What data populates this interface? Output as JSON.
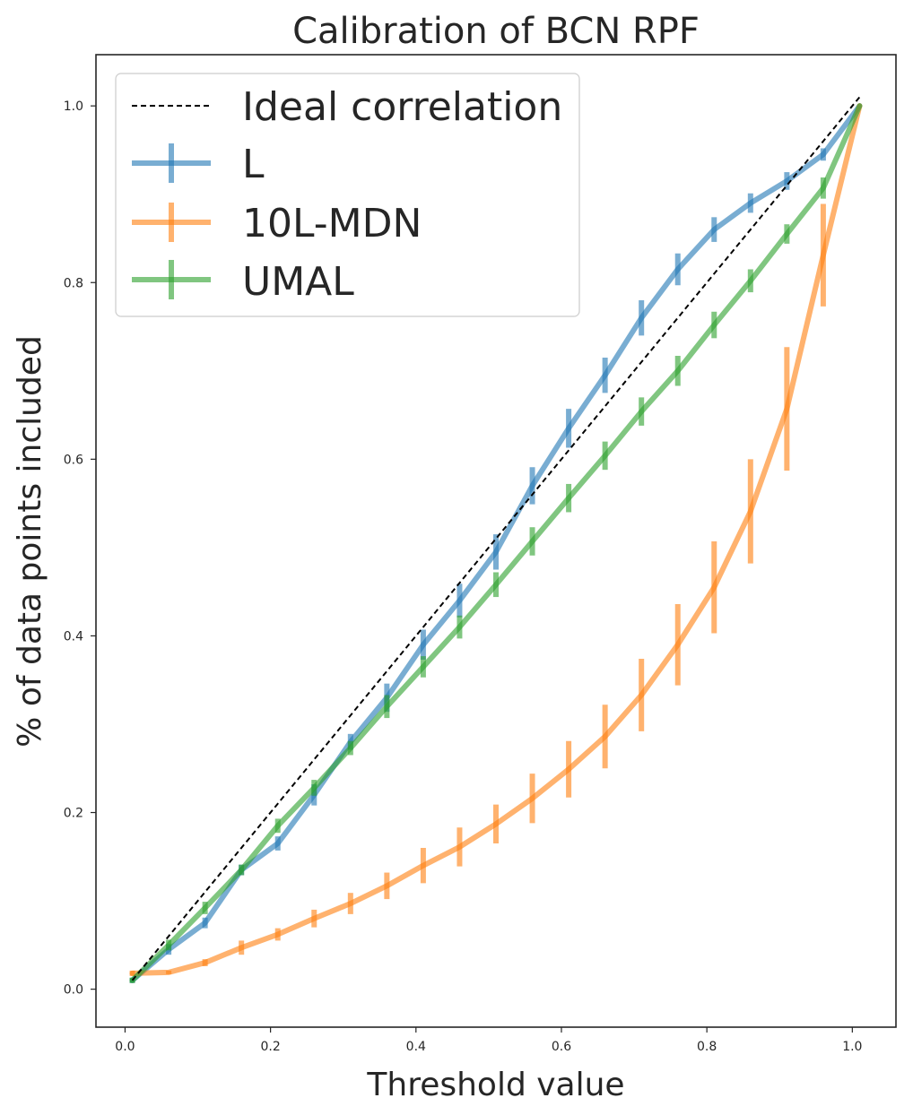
{
  "chart_data": {
    "type": "line",
    "title": "Calibration of BCN RPF",
    "xlabel": "Threshold value",
    "ylabel": "% of data points included",
    "xlim": [
      -0.04,
      1.06
    ],
    "ylim": [
      -0.043,
      1.058
    ],
    "xticks": [
      0.0,
      0.2,
      0.4,
      0.6,
      0.8,
      1.0
    ],
    "xtick_labels": [
      "0.0",
      "0.2",
      "0.4",
      "0.6",
      "0.8",
      "1.0"
    ],
    "yticks": [
      0.0,
      0.2,
      0.4,
      0.6,
      0.8,
      1.0
    ],
    "ytick_labels": [
      "0.0",
      "0.2",
      "0.4",
      "0.6",
      "0.8",
      "1.0"
    ],
    "legend_position": "top-left",
    "x": [
      0.01,
      0.06,
      0.11,
      0.16,
      0.21,
      0.26,
      0.31,
      0.36,
      0.41,
      0.46,
      0.51,
      0.56,
      0.61,
      0.66,
      0.71,
      0.76,
      0.81,
      0.86,
      0.91,
      0.96,
      1.01
    ],
    "ideal": {
      "name": "Ideal correlation",
      "color": "#000000",
      "x": [
        0.01,
        1.01
      ],
      "y": [
        0.01,
        1.01
      ]
    },
    "series": [
      {
        "name": "L",
        "color": "#1f77b4",
        "values": [
          0.01,
          0.045,
          0.075,
          0.135,
          0.165,
          0.22,
          0.28,
          0.33,
          0.39,
          0.44,
          0.495,
          0.57,
          0.635,
          0.695,
          0.76,
          0.815,
          0.86,
          0.89,
          0.915,
          0.945,
          1.0
        ],
        "errors": [
          0.003,
          0.006,
          0.006,
          0.006,
          0.008,
          0.012,
          0.009,
          0.016,
          0.017,
          0.019,
          0.02,
          0.021,
          0.022,
          0.02,
          0.02,
          0.018,
          0.014,
          0.011,
          0.01,
          0.007,
          0.0
        ]
      },
      {
        "name": "10L-MDN",
        "color": "#ff7f0e",
        "values": [
          0.018,
          0.019,
          0.03,
          0.047,
          0.062,
          0.08,
          0.097,
          0.117,
          0.14,
          0.161,
          0.187,
          0.216,
          0.249,
          0.286,
          0.333,
          0.39,
          0.455,
          0.541,
          0.657,
          0.831,
          1.0
        ],
        "errors": [
          0.003,
          0.002,
          0.004,
          0.008,
          0.007,
          0.01,
          0.012,
          0.015,
          0.02,
          0.022,
          0.022,
          0.028,
          0.032,
          0.036,
          0.041,
          0.046,
          0.052,
          0.059,
          0.07,
          0.058,
          0.0
        ]
      },
      {
        "name": "UMAL",
        "color": "#2ca02c",
        "values": [
          0.01,
          0.05,
          0.092,
          0.135,
          0.185,
          0.228,
          0.273,
          0.32,
          0.365,
          0.41,
          0.458,
          0.507,
          0.556,
          0.604,
          0.654,
          0.7,
          0.752,
          0.802,
          0.855,
          0.907,
          1.0
        ],
        "errors": [
          0.003,
          0.006,
          0.007,
          0.006,
          0.008,
          0.009,
          0.008,
          0.013,
          0.012,
          0.013,
          0.014,
          0.016,
          0.016,
          0.016,
          0.016,
          0.017,
          0.015,
          0.013,
          0.011,
          0.012,
          0.0
        ]
      }
    ]
  }
}
